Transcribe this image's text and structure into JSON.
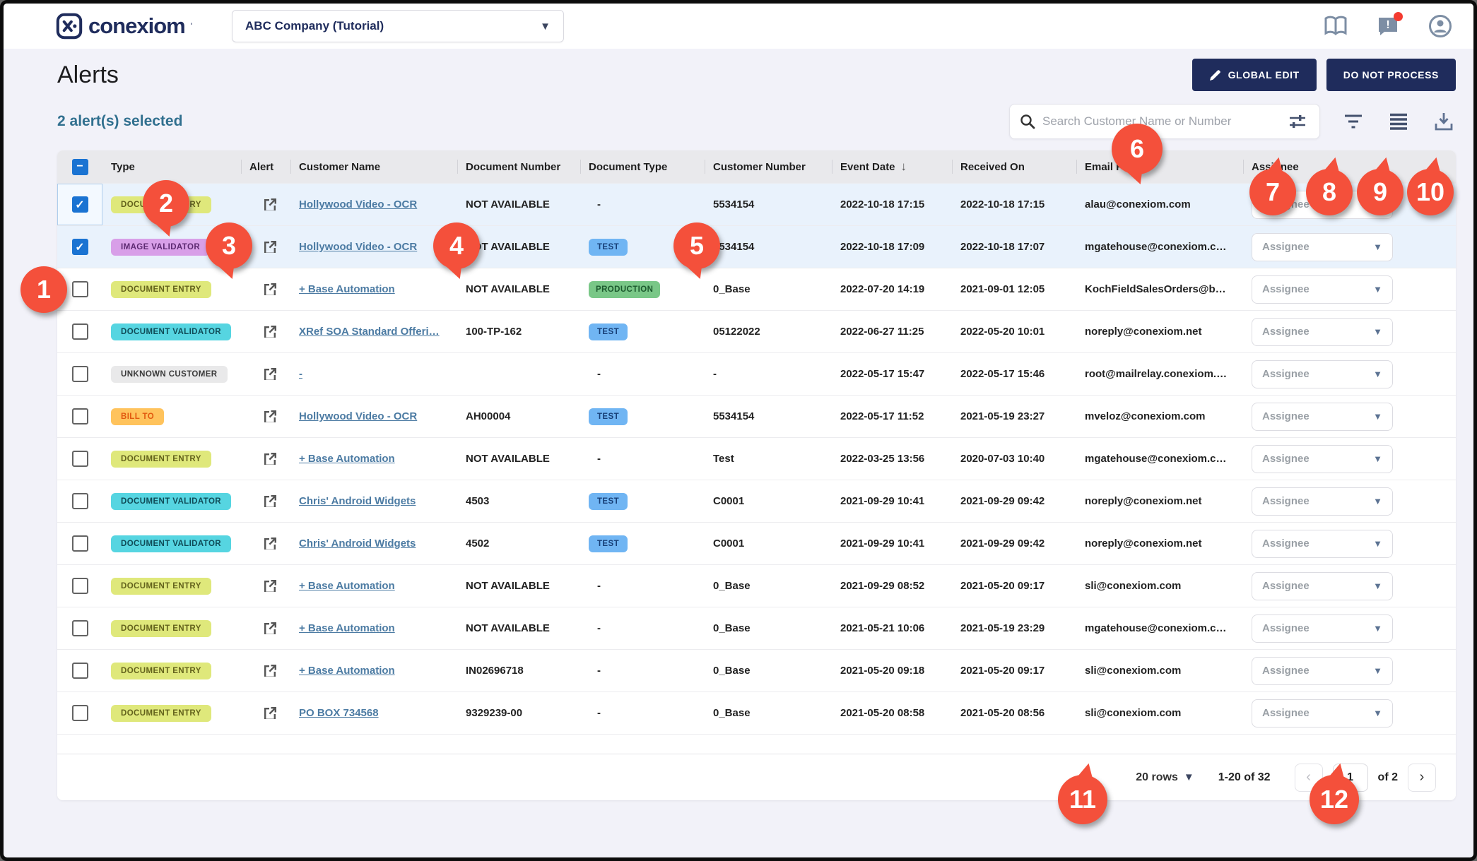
{
  "header": {
    "logo_text": "conexiom",
    "company_selector": "ABC Company (Tutorial)"
  },
  "page": {
    "title": "Alerts",
    "selected_text": "2 alert(s) selected",
    "buttons": {
      "global_edit": "GLOBAL EDIT",
      "do_not_process": "DO NOT PROCESS"
    }
  },
  "toolbar": {
    "search_placeholder": "Search Customer Name or Number"
  },
  "table": {
    "columns": [
      "Type",
      "Alert",
      "Customer Name",
      "Document Number",
      "Document Type",
      "Customer Number",
      "Event Date",
      "Received On",
      "Email From",
      "Assignee"
    ],
    "sorted_column": "Event Date",
    "assignee_placeholder": "Assignee",
    "rows": [
      {
        "checked": true,
        "selected": true,
        "type_label": "DOCUMENT ENTRY",
        "type_class": "b-entry",
        "customer": "Hollywood Video - OCR",
        "doc_number": "NOT AVAILABLE",
        "doc_type_label": "-",
        "doc_type_class": "",
        "customer_number": "5534154",
        "event_date": "2022-10-18 17:15",
        "received_on": "2022-10-18 17:15",
        "email": "alau@conexiom.com"
      },
      {
        "checked": true,
        "selected": true,
        "type_label": "IMAGE VALIDATOR",
        "type_class": "b-image",
        "customer": "Hollywood Video - OCR",
        "doc_number": "NOT AVAILABLE",
        "doc_type_label": "TEST",
        "doc_type_class": "b-test",
        "customer_number": "5534154",
        "event_date": "2022-10-18 17:09",
        "received_on": "2022-10-18 17:07",
        "email": "mgatehouse@conexiom.c…"
      },
      {
        "checked": false,
        "selected": false,
        "type_label": "DOCUMENT ENTRY",
        "type_class": "b-entry",
        "customer": "+ Base Automation",
        "doc_number": "NOT AVAILABLE",
        "doc_type_label": "PRODUCTION",
        "doc_type_class": "b-prod",
        "customer_number": "0_Base",
        "event_date": "2022-07-20 14:19",
        "received_on": "2021-09-01 12:05",
        "email": "KochFieldSalesOrders@b…"
      },
      {
        "checked": false,
        "selected": false,
        "type_label": "DOCUMENT VALIDATOR",
        "type_class": "b-validator",
        "customer": "XRef SOA Standard Offeri…",
        "doc_number": "100-TP-162",
        "doc_type_label": "TEST",
        "doc_type_class": "b-test",
        "customer_number": "05122022",
        "event_date": "2022-06-27 11:25",
        "received_on": "2022-05-20 10:01",
        "email": "noreply@conexiom.net"
      },
      {
        "checked": false,
        "selected": false,
        "type_label": "UNKNOWN CUSTOMER",
        "type_class": "b-unknown",
        "customer": "-",
        "doc_number": "",
        "doc_type_label": "-",
        "doc_type_class": "",
        "customer_number": "-",
        "event_date": "2022-05-17 15:47",
        "received_on": "2022-05-17 15:46",
        "email": "root@mailrelay.conexiom.…"
      },
      {
        "checked": false,
        "selected": false,
        "type_label": "BILL TO",
        "type_class": "b-billto",
        "customer": "Hollywood Video - OCR",
        "doc_number": "AH00004",
        "doc_type_label": "TEST",
        "doc_type_class": "b-test",
        "customer_number": "5534154",
        "event_date": "2022-05-17 11:52",
        "received_on": "2021-05-19 23:27",
        "email": "mveloz@conexiom.com"
      },
      {
        "checked": false,
        "selected": false,
        "type_label": "DOCUMENT ENTRY",
        "type_class": "b-entry",
        "customer": "+ Base Automation",
        "doc_number": "NOT AVAILABLE",
        "doc_type_label": "-",
        "doc_type_class": "",
        "customer_number": "Test",
        "event_date": "2022-03-25 13:56",
        "received_on": "2020-07-03 10:40",
        "email": "mgatehouse@conexiom.c…"
      },
      {
        "checked": false,
        "selected": false,
        "type_label": "DOCUMENT VALIDATOR",
        "type_class": "b-validator",
        "customer": "Chris' Android Widgets",
        "doc_number": "4503",
        "doc_type_label": "TEST",
        "doc_type_class": "b-test",
        "customer_number": "C0001",
        "event_date": "2021-09-29 10:41",
        "received_on": "2021-09-29 09:42",
        "email": "noreply@conexiom.net"
      },
      {
        "checked": false,
        "selected": false,
        "type_label": "DOCUMENT VALIDATOR",
        "type_class": "b-validator",
        "customer": "Chris' Android Widgets",
        "doc_number": "4502",
        "doc_type_label": "TEST",
        "doc_type_class": "b-test",
        "customer_number": "C0001",
        "event_date": "2021-09-29 10:41",
        "received_on": "2021-09-29 09:42",
        "email": "noreply@conexiom.net"
      },
      {
        "checked": false,
        "selected": false,
        "type_label": "DOCUMENT ENTRY",
        "type_class": "b-entry",
        "customer": "+ Base Automation",
        "doc_number": "NOT AVAILABLE",
        "doc_type_label": "-",
        "doc_type_class": "",
        "customer_number": "0_Base",
        "event_date": "2021-09-29 08:52",
        "received_on": "2021-05-20 09:17",
        "email": "sli@conexiom.com"
      },
      {
        "checked": false,
        "selected": false,
        "type_label": "DOCUMENT ENTRY",
        "type_class": "b-entry",
        "customer": "+ Base Automation",
        "doc_number": "NOT AVAILABLE",
        "doc_type_label": "-",
        "doc_type_class": "",
        "customer_number": "0_Base",
        "event_date": "2021-05-21 10:06",
        "received_on": "2021-05-19 23:29",
        "email": "mgatehouse@conexiom.c…"
      },
      {
        "checked": false,
        "selected": false,
        "type_label": "DOCUMENT ENTRY",
        "type_class": "b-entry",
        "customer": "+ Base Automation",
        "doc_number": "IN02696718",
        "doc_type_label": "-",
        "doc_type_class": "",
        "customer_number": "0_Base",
        "event_date": "2021-05-20 09:18",
        "received_on": "2021-05-20 09:17",
        "email": "sli@conexiom.com"
      },
      {
        "checked": false,
        "selected": false,
        "type_label": "DOCUMENT ENTRY",
        "type_class": "b-entry",
        "customer": "PO BOX 734568",
        "doc_number": "9329239-00",
        "doc_type_label": "-",
        "doc_type_class": "",
        "customer_number": "0_Base",
        "event_date": "2021-05-20 08:58",
        "received_on": "2021-05-20 08:56",
        "email": "sli@conexiom.com"
      }
    ]
  },
  "footer": {
    "rows_label": "20 rows",
    "range": "1-20 of 32",
    "page": "1",
    "of_label": "of 2"
  },
  "callouts": [
    "1",
    "2",
    "3",
    "4",
    "5",
    "6",
    "7",
    "8",
    "9",
    "10",
    "11",
    "12"
  ]
}
